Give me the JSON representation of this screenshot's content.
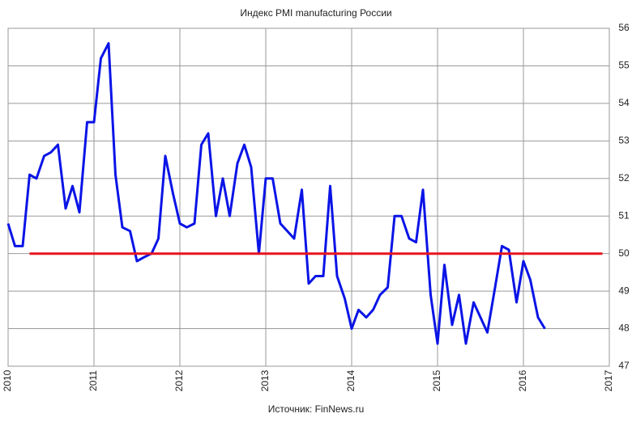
{
  "chart_data": {
    "type": "line",
    "title": "Индекс PMI manufacturing России",
    "footer": "Источник: FinNews.ru",
    "x": [
      2010,
      2010.08,
      2010.17,
      2010.25,
      2010.33,
      2010.42,
      2010.5,
      2010.58,
      2010.67,
      2010.75,
      2010.83,
      2010.92,
      2011,
      2011.08,
      2011.17,
      2011.25,
      2011.33,
      2011.42,
      2011.5,
      2011.58,
      2011.67,
      2011.75,
      2011.83,
      2011.92,
      2012,
      2012.08,
      2012.17,
      2012.25,
      2012.33,
      2012.42,
      2012.5,
      2012.58,
      2012.67,
      2012.75,
      2012.83,
      2012.92,
      2013,
      2013.08,
      2013.17,
      2013.25,
      2013.33,
      2013.42,
      2013.5,
      2013.58,
      2013.67,
      2013.75,
      2013.83,
      2013.92,
      2014,
      2014.08,
      2014.17,
      2014.25,
      2014.33,
      2014.42,
      2014.5,
      2014.58,
      2014.67,
      2014.75,
      2014.83,
      2014.92,
      2015,
      2015.08,
      2015.17,
      2015.25,
      2015.33,
      2015.42,
      2015.5,
      2015.58,
      2015.67,
      2015.75,
      2015.83,
      2015.92,
      2016,
      2016.08,
      2016.17,
      2016.25
    ],
    "series": [
      {
        "color": "#0a14e6",
        "values": [
          50.8,
          50.2,
          50.2,
          52.1,
          52.0,
          52.6,
          52.7,
          52.9,
          51.2,
          51.8,
          51.1,
          53.5,
          53.5,
          55.2,
          55.6,
          52.1,
          50.7,
          50.6,
          49.8,
          49.9,
          50.0,
          50.4,
          52.6,
          51.6,
          50.8,
          50.7,
          50.8,
          52.9,
          53.2,
          51.0,
          52.0,
          51.0,
          52.4,
          52.9,
          52.3,
          50.0,
          52.0,
          52.0,
          50.8,
          50.6,
          50.4,
          51.7,
          49.2,
          49.4,
          49.4,
          51.8,
          49.4,
          48.8,
          48.0,
          48.5,
          48.3,
          48.5,
          48.9,
          49.1,
          51.0,
          51.0,
          50.4,
          50.3,
          51.7,
          48.9,
          47.6,
          49.7,
          48.1,
          48.9,
          47.6,
          48.7,
          48.3,
          47.9,
          49.1,
          50.2,
          50.1,
          48.7,
          49.8,
          49.3,
          48.3,
          48.0
        ]
      },
      {
        "color": "#e8141e",
        "x": [
          2010.25,
          2016.92
        ],
        "values": [
          50,
          50
        ]
      }
    ],
    "xlim": [
      2010,
      2017
    ],
    "xticks": [
      2010,
      2011,
      2012,
      2013,
      2014,
      2015,
      2016,
      2017
    ],
    "ylim": [
      47,
      56
    ],
    "yticks": [
      47,
      48,
      49,
      50,
      51,
      52,
      53,
      54,
      55,
      56
    ],
    "grid": true
  }
}
